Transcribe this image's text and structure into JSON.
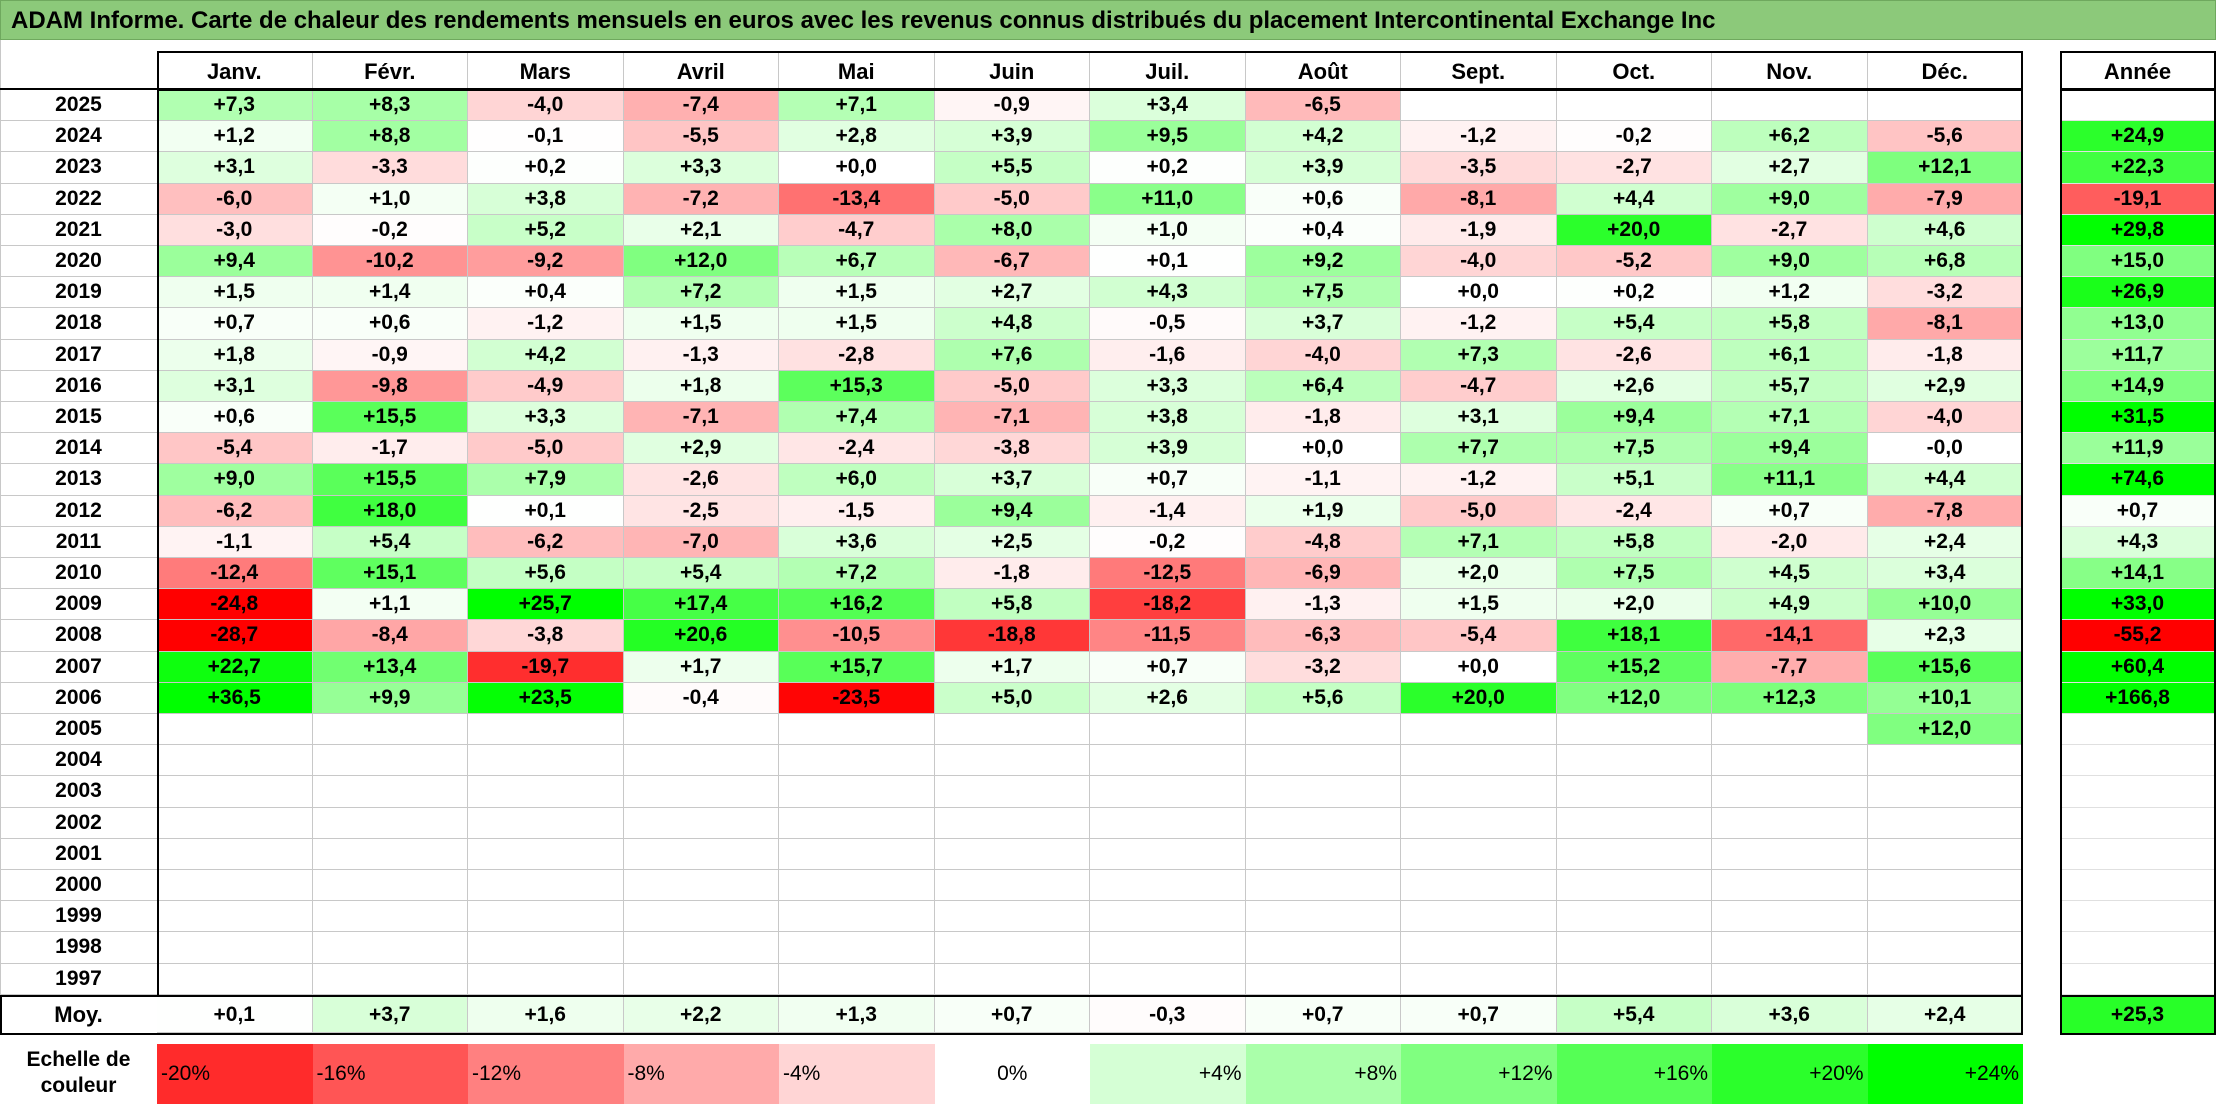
{
  "title": "ADAM Informe. Carte de chaleur des rendements mensuels en euros avec les revenus connus distribués du placement Intercontinental Exchange Inc",
  "chart_data": {
    "type": "heatmap",
    "months": [
      "Janv.",
      "Févr.",
      "Mars",
      "Avril",
      "Mai",
      "Juin",
      "Juil.",
      "Août",
      "Sept.",
      "Oct.",
      "Nov.",
      "Déc."
    ],
    "year_header": "Année",
    "rows": [
      {
        "year": "2025",
        "values": [
          "+7,3",
          "+8,3",
          "-4,0",
          "-7,4",
          "+7,1",
          "-0,9",
          "+3,4",
          "-6,5",
          "",
          "",
          "",
          ""
        ],
        "annual": ""
      },
      {
        "year": "2024",
        "values": [
          "+1,2",
          "+8,8",
          "-0,1",
          "-5,5",
          "+2,8",
          "+3,9",
          "+9,5",
          "+4,2",
          "-1,2",
          "-0,2",
          "+6,2",
          "-5,6"
        ],
        "annual": "+24,9"
      },
      {
        "year": "2023",
        "values": [
          "+3,1",
          "-3,3",
          "+0,2",
          "+3,3",
          "+0,0",
          "+5,5",
          "+0,2",
          "+3,9",
          "-3,5",
          "-2,7",
          "+2,7",
          "+12,1"
        ],
        "annual": "+22,3"
      },
      {
        "year": "2022",
        "values": [
          "-6,0",
          "+1,0",
          "+3,8",
          "-7,2",
          "-13,4",
          "-5,0",
          "+11,0",
          "+0,6",
          "-8,1",
          "+4,4",
          "+9,0",
          "-7,9"
        ],
        "annual": "-19,1"
      },
      {
        "year": "2021",
        "values": [
          "-3,0",
          "-0,2",
          "+5,2",
          "+2,1",
          "-4,7",
          "+8,0",
          "+1,0",
          "+0,4",
          "-1,9",
          "+20,0",
          "-2,7",
          "+4,6"
        ],
        "annual": "+29,8"
      },
      {
        "year": "2020",
        "values": [
          "+9,4",
          "-10,2",
          "-9,2",
          "+12,0",
          "+6,7",
          "-6,7",
          "+0,1",
          "+9,2",
          "-4,0",
          "-5,2",
          "+9,0",
          "+6,8"
        ],
        "annual": "+15,0"
      },
      {
        "year": "2019",
        "values": [
          "+1,5",
          "+1,4",
          "+0,4",
          "+7,2",
          "+1,5",
          "+2,7",
          "+4,3",
          "+7,5",
          "+0,0",
          "+0,2",
          "+1,2",
          "-3,2"
        ],
        "annual": "+26,9"
      },
      {
        "year": "2018",
        "values": [
          "+0,7",
          "+0,6",
          "-1,2",
          "+1,5",
          "+1,5",
          "+4,8",
          "-0,5",
          "+3,7",
          "-1,2",
          "+5,4",
          "+5,8",
          "-8,1"
        ],
        "annual": "+13,0"
      },
      {
        "year": "2017",
        "values": [
          "+1,8",
          "-0,9",
          "+4,2",
          "-1,3",
          "-2,8",
          "+7,6",
          "-1,6",
          "-4,0",
          "+7,3",
          "-2,6",
          "+6,1",
          "-1,8"
        ],
        "annual": "+11,7"
      },
      {
        "year": "2016",
        "values": [
          "+3,1",
          "-9,8",
          "-4,9",
          "+1,8",
          "+15,3",
          "-5,0",
          "+3,3",
          "+6,4",
          "-4,7",
          "+2,6",
          "+5,7",
          "+2,9"
        ],
        "annual": "+14,9"
      },
      {
        "year": "2015",
        "values": [
          "+0,6",
          "+15,5",
          "+3,3",
          "-7,1",
          "+7,4",
          "-7,1",
          "+3,8",
          "-1,8",
          "+3,1",
          "+9,4",
          "+7,1",
          "-4,0"
        ],
        "annual": "+31,5"
      },
      {
        "year": "2014",
        "values": [
          "-5,4",
          "-1,7",
          "-5,0",
          "+2,9",
          "-2,4",
          "-3,8",
          "+3,9",
          "+0,0",
          "+7,7",
          "+7,5",
          "+9,4",
          "-0,0"
        ],
        "annual": "+11,9"
      },
      {
        "year": "2013",
        "values": [
          "+9,0",
          "+15,5",
          "+7,9",
          "-2,6",
          "+6,0",
          "+3,7",
          "+0,7",
          "-1,1",
          "-1,2",
          "+5,1",
          "+11,1",
          "+4,4"
        ],
        "annual": "+74,6"
      },
      {
        "year": "2012",
        "values": [
          "-6,2",
          "+18,0",
          "+0,1",
          "-2,5",
          "-1,5",
          "+9,4",
          "-1,4",
          "+1,9",
          "-5,0",
          "-2,4",
          "+0,7",
          "-7,8"
        ],
        "annual": "+0,7"
      },
      {
        "year": "2011",
        "values": [
          "-1,1",
          "+5,4",
          "-6,2",
          "-7,0",
          "+3,6",
          "+2,5",
          "-0,2",
          "-4,8",
          "+7,1",
          "+5,8",
          "-2,0",
          "+2,4"
        ],
        "annual": "+4,3"
      },
      {
        "year": "2010",
        "values": [
          "-12,4",
          "+15,1",
          "+5,6",
          "+5,4",
          "+7,2",
          "-1,8",
          "-12,5",
          "-6,9",
          "+2,0",
          "+7,5",
          "+4,5",
          "+3,4"
        ],
        "annual": "+14,1"
      },
      {
        "year": "2009",
        "values": [
          "-24,8",
          "+1,1",
          "+25,7",
          "+17,4",
          "+16,2",
          "+5,8",
          "-18,2",
          "-1,3",
          "+1,5",
          "+2,0",
          "+4,9",
          "+10,0"
        ],
        "annual": "+33,0"
      },
      {
        "year": "2008",
        "values": [
          "-28,7",
          "-8,4",
          "-3,8",
          "+20,6",
          "-10,5",
          "-18,8",
          "-11,5",
          "-6,3",
          "-5,4",
          "+18,1",
          "-14,1",
          "+2,3"
        ],
        "annual": "-55,2"
      },
      {
        "year": "2007",
        "values": [
          "+22,7",
          "+13,4",
          "-19,7",
          "+1,7",
          "+15,7",
          "+1,7",
          "+0,7",
          "-3,2",
          "+0,0",
          "+15,2",
          "-7,7",
          "+15,6"
        ],
        "annual": "+60,4"
      },
      {
        "year": "2006",
        "values": [
          "+36,5",
          "+9,9",
          "+23,5",
          "-0,4",
          "-23,5",
          "+5,0",
          "+2,6",
          "+5,6",
          "+20,0",
          "+12,0",
          "+12,3",
          "+10,1"
        ],
        "annual": "+166,8"
      },
      {
        "year": "2005",
        "values": [
          "",
          "",
          "",
          "",
          "",
          "",
          "",
          "",
          "",
          "",
          "",
          "+12,0"
        ],
        "annual": ""
      },
      {
        "year": "2004",
        "values": [
          "",
          "",
          "",
          "",
          "",
          "",
          "",
          "",
          "",
          "",
          "",
          ""
        ],
        "annual": ""
      },
      {
        "year": "2003",
        "values": [
          "",
          "",
          "",
          "",
          "",
          "",
          "",
          "",
          "",
          "",
          "",
          ""
        ],
        "annual": ""
      },
      {
        "year": "2002",
        "values": [
          "",
          "",
          "",
          "",
          "",
          "",
          "",
          "",
          "",
          "",
          "",
          ""
        ],
        "annual": ""
      },
      {
        "year": "2001",
        "values": [
          "",
          "",
          "",
          "",
          "",
          "",
          "",
          "",
          "",
          "",
          "",
          ""
        ],
        "annual": ""
      },
      {
        "year": "2000",
        "values": [
          "",
          "",
          "",
          "",
          "",
          "",
          "",
          "",
          "",
          "",
          "",
          ""
        ],
        "annual": ""
      },
      {
        "year": "1999",
        "values": [
          "",
          "",
          "",
          "",
          "",
          "",
          "",
          "",
          "",
          "",
          "",
          ""
        ],
        "annual": ""
      },
      {
        "year": "1998",
        "values": [
          "",
          "",
          "",
          "",
          "",
          "",
          "",
          "",
          "",
          "",
          "",
          ""
        ],
        "annual": ""
      },
      {
        "year": "1997",
        "values": [
          "",
          "",
          "",
          "",
          "",
          "",
          "",
          "",
          "",
          "",
          "",
          ""
        ],
        "annual": ""
      }
    ],
    "average": {
      "label": "Moy.",
      "values": [
        "+0,1",
        "+3,7",
        "+1,6",
        "+2,2",
        "+1,3",
        "+0,7",
        "-0,3",
        "+0,7",
        "+0,7",
        "+5,4",
        "+3,6",
        "+2,4"
      ],
      "annual": "+25,3"
    },
    "scale": {
      "label": "Echelle de\ncouleur",
      "steps": [
        {
          "label": "-20%",
          "value": -20,
          "align": "left"
        },
        {
          "label": "-16%",
          "value": -16,
          "align": "left"
        },
        {
          "label": "-12%",
          "value": -12,
          "align": "left"
        },
        {
          "label": "-8%",
          "value": -8,
          "align": "left"
        },
        {
          "label": "-4%",
          "value": -4,
          "align": "left"
        },
        {
          "label": "0%",
          "value": 0,
          "align": "center"
        },
        {
          "label": "+4%",
          "value": 4,
          "align": "right"
        },
        {
          "label": "+8%",
          "value": 8,
          "align": "right"
        },
        {
          "label": "+12%",
          "value": 12,
          "align": "right"
        },
        {
          "label": "+16%",
          "value": 16,
          "align": "right"
        },
        {
          "label": "+20%",
          "value": 20,
          "align": "right"
        },
        {
          "label": "+24%",
          "value": 24,
          "align": "right"
        }
      ]
    }
  }
}
